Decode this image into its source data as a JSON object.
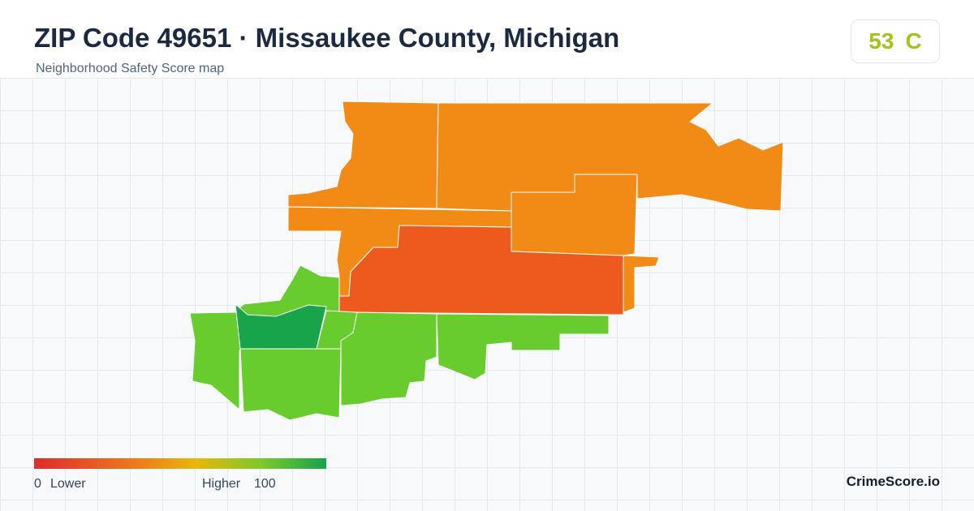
{
  "header": {
    "title": "ZIP Code 49651 · Missaukee County, Michigan",
    "subtitle": "Neighborhood Safety Score map"
  },
  "score": {
    "value": "53",
    "grade": "C"
  },
  "legend": {
    "min": "0",
    "min_label": "Lower",
    "max_label": "Higher",
    "max": "100"
  },
  "footer": {
    "brand": "CrimeScore.io"
  }
}
